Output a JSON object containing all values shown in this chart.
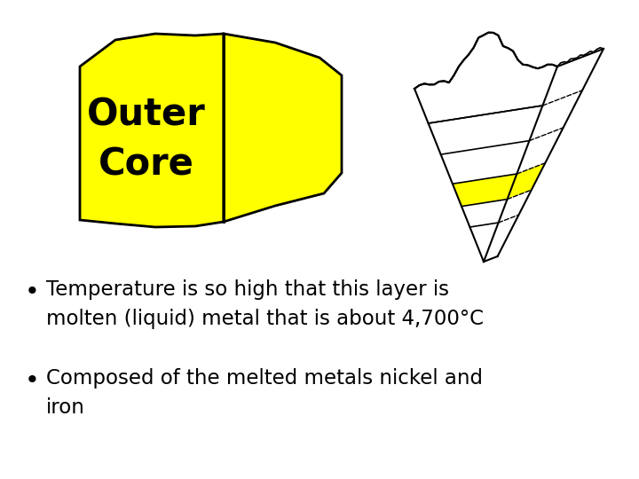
{
  "bg_color": "#ffffff",
  "title_text_line1": "Outer",
  "title_text_line2": "Core",
  "title_color": "#000000",
  "yellow_color": "#ffff00",
  "outline_color": "#000000",
  "bullet1_line1": "Temperature is so high that this layer is",
  "bullet1_line2": "molten (liquid) metal that is about 4,700°C",
  "bullet2_line1": "Composed of the melted metals nickel and",
  "bullet2_line2": "iron",
  "text_color": "#000000",
  "text_fontsize": 16.5
}
